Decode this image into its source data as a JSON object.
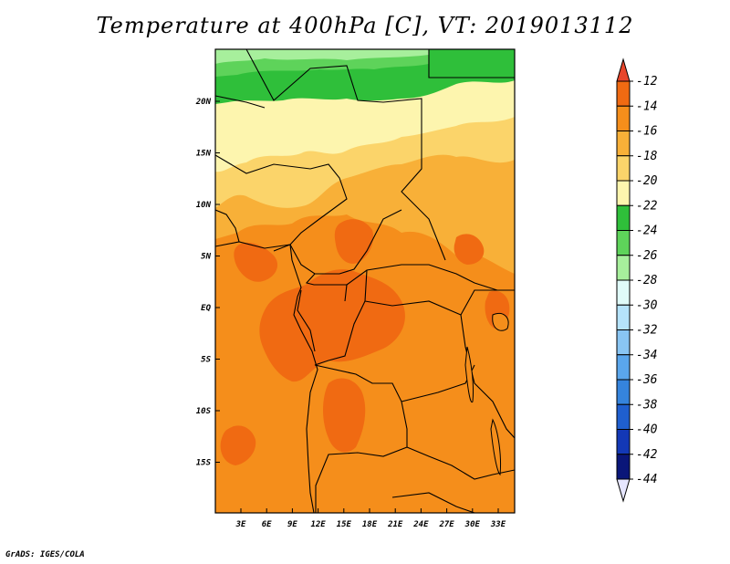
{
  "title": "Temperature at 400hPa [C], VT: 2019013112",
  "credit": "GrADS: IGES/COLA",
  "map": {
    "lon_ticks": [
      "3E",
      "6E",
      "9E",
      "12E",
      "15E",
      "18E",
      "21E",
      "24E",
      "27E",
      "30E",
      "33E"
    ],
    "lat_ticks": [
      "20N",
      "15N",
      "10N",
      "5N",
      "EQ",
      "5S",
      "10S",
      "15S"
    ]
  },
  "colorbar": {
    "labels": [
      "-12",
      "-14",
      "-16",
      "-18",
      "-20",
      "-22",
      "-24",
      "-26",
      "-28",
      "-30",
      "-32",
      "-34",
      "-36",
      "-38",
      "-40",
      "-42",
      "-44"
    ],
    "colors": [
      "#e8462b",
      "#f06a12",
      "#f58e1b",
      "#f8b038",
      "#fbd46a",
      "#fdf5ae",
      "#2fbf3a",
      "#5ed35a",
      "#a7ef9c",
      "#e0fbf9",
      "#b5e3fb",
      "#89c5f3",
      "#5aa6ec",
      "#3584dd",
      "#1f5fcf",
      "#1338b6",
      "#0a1679",
      "#e6e6ff"
    ]
  },
  "colors": {
    "orange_dark": "#f06a12",
    "orange": "#f58e1b",
    "orange_light": "#f8b038",
    "yellow": "#fbd46a",
    "pale_yellow": "#fdf5ae",
    "green": "#2fbf3a",
    "light_green": "#a7ef9c",
    "mid_green": "#5ed35a"
  }
}
